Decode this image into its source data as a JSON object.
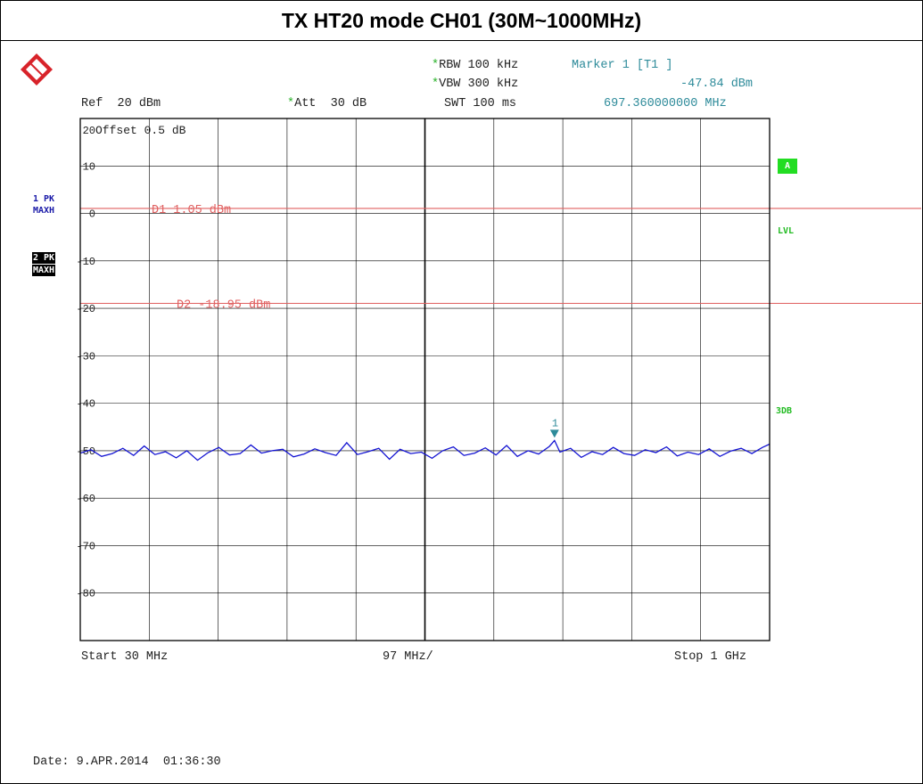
{
  "title": "TX HT20 mode CH01 (30M~1000MHz)",
  "header": {
    "rbw_label": "RBW",
    "rbw_value": "100 kHz",
    "vbw_label": "VBW",
    "vbw_value": "300 kHz",
    "swt_label": "SWT",
    "swt_value": "100 ms",
    "ref_label": "Ref",
    "ref_value": "20 dBm",
    "att_label": "Att",
    "att_value": "30 dB",
    "marker_label": "Marker 1 [T1 ]",
    "marker_level": "-47.84 dBm",
    "marker_freq": "697.360000000 MHz",
    "star": "*"
  },
  "left_labels": {
    "trace1_line1": "1 PK",
    "trace1_line2": "MAXH",
    "trace2_line1": "2 PK",
    "trace2_line2": "MAXH"
  },
  "right_labels": {
    "a": "A",
    "lvl": "LVL",
    "threedb": "3DB"
  },
  "offset_text": "Offset  0.5 dB",
  "footer": {
    "start": "Start 30 MHz",
    "span_per_div": "97 MHz/",
    "stop": "Stop 1 GHz",
    "date": "Date: 9.APR.2014  01:36:30"
  },
  "colors": {
    "trace": "#1414d2",
    "limit_lines": "#e06060",
    "marker": "#2e8b9a",
    "green_badge": "#22dd22",
    "side_blue": "#1a1aa8"
  },
  "chart_data": {
    "type": "line",
    "title": "TX HT20 mode CH01 (30M~1000MHz)",
    "xlabel": "",
    "ylabel": "",
    "x_unit": "MHz",
    "y_unit": "dBm",
    "xlim": [
      30,
      1000
    ],
    "ylim": [
      -90,
      20
    ],
    "y_ticks": [
      20,
      10,
      0,
      -10,
      -20,
      -30,
      -40,
      -50,
      -60,
      -70,
      -80
    ],
    "y_tick_labels": [
      "20",
      "10",
      "0",
      "-10",
      "-20",
      "-30",
      "-40",
      "-50",
      "-60",
      "-70",
      "-80"
    ],
    "grid": true,
    "limit_lines": [
      {
        "name": "D1",
        "label": "D1 1.05 dBm",
        "value": 1.05
      },
      {
        "name": "D2",
        "label": "D2 -18.95 dBm",
        "value": -18.95
      }
    ],
    "marker": {
      "label": "1",
      "x": 697.36,
      "y": -47.84
    },
    "series": [
      {
        "x": [
          30,
          45,
          60,
          75,
          90,
          105,
          120,
          135,
          150,
          165,
          180,
          195,
          210,
          225,
          240,
          255,
          270,
          285,
          300,
          315,
          330,
          345,
          360,
          375,
          390,
          405,
          420,
          435,
          450,
          465,
          480,
          495,
          510,
          525,
          540,
          555,
          570,
          585,
          600,
          615,
          630,
          645,
          660,
          675,
          690,
          697.36,
          705,
          720,
          735,
          750,
          765,
          780,
          795,
          810,
          825,
          840,
          855,
          870,
          885,
          900,
          915,
          930,
          945,
          960,
          975,
          990,
          1000
        ],
        "values": [
          -50.5,
          -49.8,
          -51.2,
          -50.6,
          -49.5,
          -51.0,
          -49.0,
          -50.8,
          -50.2,
          -51.5,
          -50.0,
          -52.0,
          -50.4,
          -49.3,
          -50.9,
          -50.6,
          -48.8,
          -50.5,
          -50.0,
          -49.7,
          -51.3,
          -50.7,
          -49.6,
          -50.4,
          -51.0,
          -48.3,
          -50.8,
          -50.2,
          -49.5,
          -51.8,
          -49.7,
          -50.6,
          -50.3,
          -51.6,
          -50.0,
          -49.2,
          -51.0,
          -50.5,
          -49.4,
          -50.9,
          -48.9,
          -51.2,
          -50.0,
          -50.7,
          -49.1,
          -47.84,
          -50.3,
          -49.5,
          -51.4,
          -50.2,
          -50.8,
          -49.3,
          -50.6,
          -51.0,
          -49.8,
          -50.4,
          -49.2,
          -51.1,
          -50.3,
          -50.8,
          -49.6,
          -51.2,
          -50.1,
          -49.5,
          -50.6,
          -49.3,
          -48.6
        ]
      }
    ]
  }
}
